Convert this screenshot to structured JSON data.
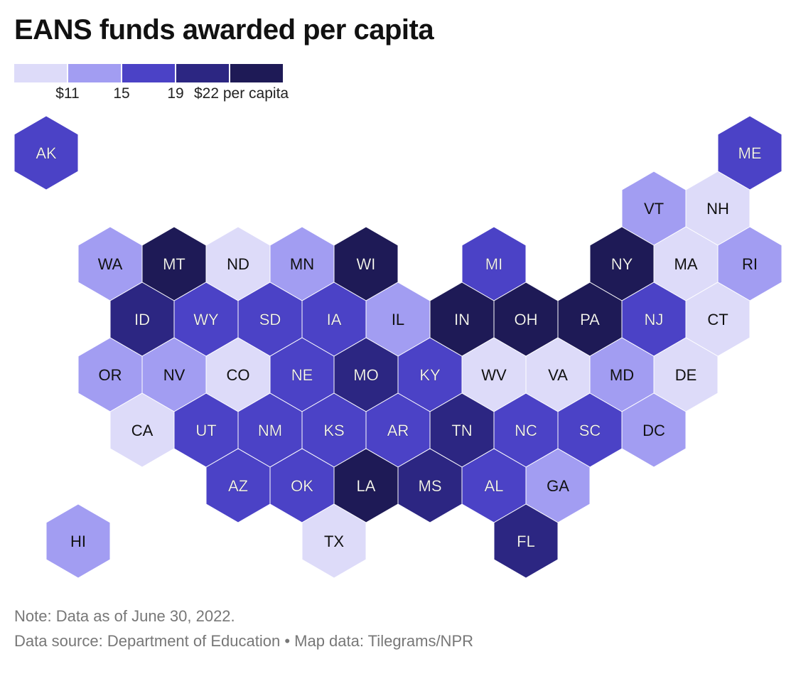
{
  "title": "EANS funds awarded per capita",
  "legend": {
    "colors": [
      "#dddbf9",
      "#a29df2",
      "#4b42c6",
      "#2c2682",
      "#1e1a56"
    ],
    "labels": [
      "$11",
      "15",
      "19",
      "$22 per capita"
    ]
  },
  "notes": {
    "note": "Note: Data as of June 30, 2022.",
    "source": "Data source: Department of Education • Map data: Tilegrams/NPR"
  },
  "chart_data": {
    "type": "hex-tile-map",
    "bins": [
      {
        "color": "#dddbf9",
        "label_color": "#111111"
      },
      {
        "color": "#a29df2",
        "label_color": "#111111"
      },
      {
        "color": "#4b42c6",
        "label_color": "#ffffff"
      },
      {
        "color": "#2c2682",
        "label_color": "#ffffff"
      },
      {
        "color": "#1e1a56",
        "label_color": "#ffffff"
      }
    ],
    "states": [
      {
        "abbr": "AK",
        "row": 0,
        "col": 0,
        "bin": 2
      },
      {
        "abbr": "ME",
        "row": 0,
        "col": 11,
        "bin": 2
      },
      {
        "abbr": "VT",
        "row": 1,
        "col": 9.5,
        "bin": 1
      },
      {
        "abbr": "NH",
        "row": 1,
        "col": 10.5,
        "bin": 0
      },
      {
        "abbr": "WA",
        "row": 2,
        "col": 1,
        "bin": 1
      },
      {
        "abbr": "MT",
        "row": 2,
        "col": 2,
        "bin": 4
      },
      {
        "abbr": "ND",
        "row": 2,
        "col": 3,
        "bin": 0
      },
      {
        "abbr": "MN",
        "row": 2,
        "col": 4,
        "bin": 1
      },
      {
        "abbr": "WI",
        "row": 2,
        "col": 5,
        "bin": 4
      },
      {
        "abbr": "MI",
        "row": 2,
        "col": 7,
        "bin": 2
      },
      {
        "abbr": "NY",
        "row": 2,
        "col": 9,
        "bin": 4
      },
      {
        "abbr": "MA",
        "row": 2,
        "col": 10,
        "bin": 0
      },
      {
        "abbr": "RI",
        "row": 2,
        "col": 11,
        "bin": 1
      },
      {
        "abbr": "ID",
        "row": 3,
        "col": 1.5,
        "bin": 3
      },
      {
        "abbr": "WY",
        "row": 3,
        "col": 2.5,
        "bin": 2
      },
      {
        "abbr": "SD",
        "row": 3,
        "col": 3.5,
        "bin": 2
      },
      {
        "abbr": "IA",
        "row": 3,
        "col": 4.5,
        "bin": 2
      },
      {
        "abbr": "IL",
        "row": 3,
        "col": 5.5,
        "bin": 1
      },
      {
        "abbr": "IN",
        "row": 3,
        "col": 6.5,
        "bin": 4
      },
      {
        "abbr": "OH",
        "row": 3,
        "col": 7.5,
        "bin": 4
      },
      {
        "abbr": "PA",
        "row": 3,
        "col": 8.5,
        "bin": 4
      },
      {
        "abbr": "NJ",
        "row": 3,
        "col": 9.5,
        "bin": 2
      },
      {
        "abbr": "CT",
        "row": 3,
        "col": 10.5,
        "bin": 0
      },
      {
        "abbr": "OR",
        "row": 4,
        "col": 1,
        "bin": 1
      },
      {
        "abbr": "NV",
        "row": 4,
        "col": 2,
        "bin": 1
      },
      {
        "abbr": "CO",
        "row": 4,
        "col": 3,
        "bin": 0
      },
      {
        "abbr": "NE",
        "row": 4,
        "col": 4,
        "bin": 2
      },
      {
        "abbr": "MO",
        "row": 4,
        "col": 5,
        "bin": 3
      },
      {
        "abbr": "KY",
        "row": 4,
        "col": 6,
        "bin": 2
      },
      {
        "abbr": "WV",
        "row": 4,
        "col": 7,
        "bin": 0
      },
      {
        "abbr": "VA",
        "row": 4,
        "col": 8,
        "bin": 0
      },
      {
        "abbr": "MD",
        "row": 4,
        "col": 9,
        "bin": 1
      },
      {
        "abbr": "DE",
        "row": 4,
        "col": 10,
        "bin": 0
      },
      {
        "abbr": "CA",
        "row": 5,
        "col": 1.5,
        "bin": 0
      },
      {
        "abbr": "UT",
        "row": 5,
        "col": 2.5,
        "bin": 2
      },
      {
        "abbr": "NM",
        "row": 5,
        "col": 3.5,
        "bin": 2
      },
      {
        "abbr": "KS",
        "row": 5,
        "col": 4.5,
        "bin": 2
      },
      {
        "abbr": "AR",
        "row": 5,
        "col": 5.5,
        "bin": 2
      },
      {
        "abbr": "TN",
        "row": 5,
        "col": 6.5,
        "bin": 3
      },
      {
        "abbr": "NC",
        "row": 5,
        "col": 7.5,
        "bin": 2
      },
      {
        "abbr": "SC",
        "row": 5,
        "col": 8.5,
        "bin": 2
      },
      {
        "abbr": "DC",
        "row": 5,
        "col": 9.5,
        "bin": 1
      },
      {
        "abbr": "AZ",
        "row": 6,
        "col": 3,
        "bin": 2
      },
      {
        "abbr": "OK",
        "row": 6,
        "col": 4,
        "bin": 2
      },
      {
        "abbr": "LA",
        "row": 6,
        "col": 5,
        "bin": 4
      },
      {
        "abbr": "MS",
        "row": 6,
        "col": 6,
        "bin": 3
      },
      {
        "abbr": "AL",
        "row": 6,
        "col": 7,
        "bin": 2
      },
      {
        "abbr": "GA",
        "row": 6,
        "col": 8,
        "bin": 1
      },
      {
        "abbr": "HI",
        "row": 7,
        "col": 0.5,
        "bin": 1
      },
      {
        "abbr": "TX",
        "row": 7,
        "col": 4.5,
        "bin": 0
      },
      {
        "abbr": "FL",
        "row": 7,
        "col": 7.5,
        "bin": 3
      }
    ]
  }
}
